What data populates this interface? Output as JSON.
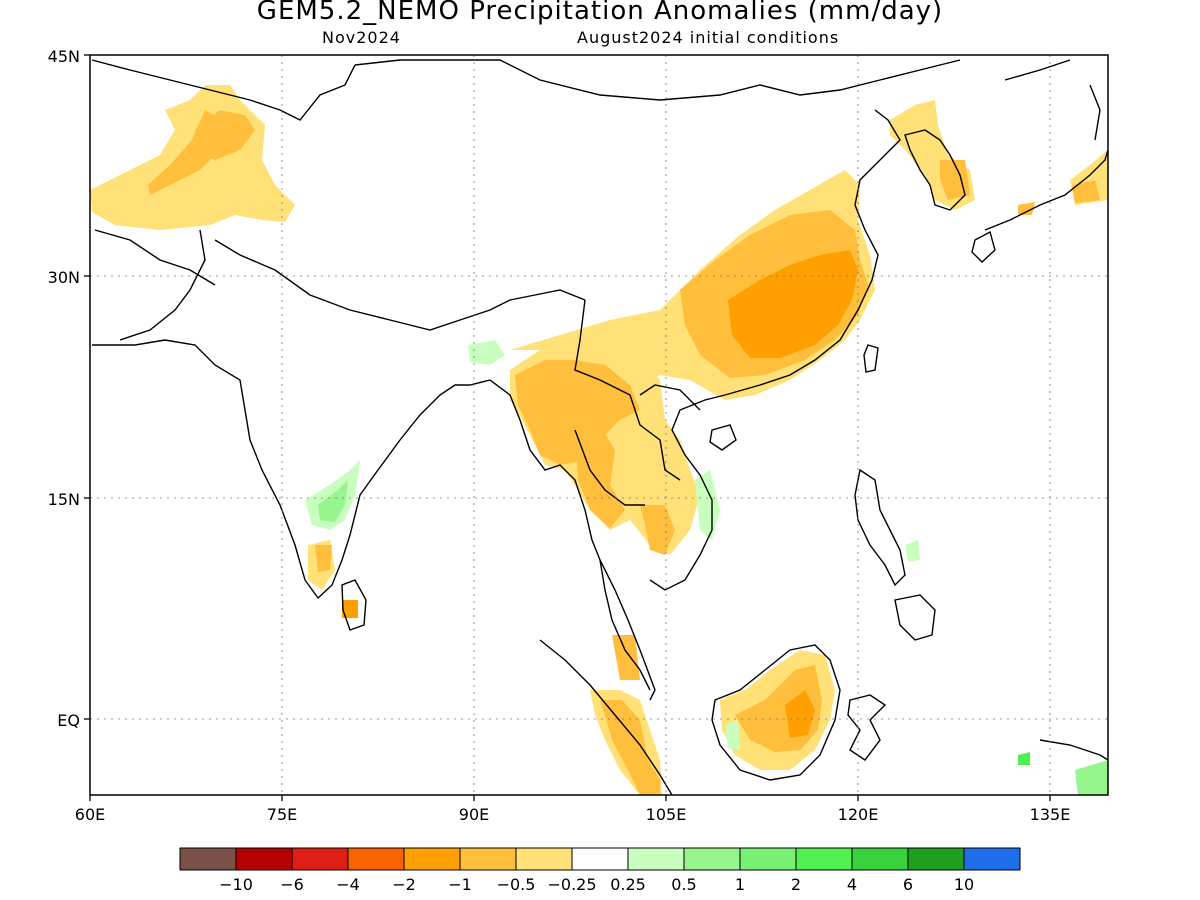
{
  "header": {
    "title": "GEM5.2_NEMO Precipitation Anomalies (mm/day)",
    "month": "Nov2024",
    "init": "August2024 initial conditions"
  },
  "map": {
    "lat_labels": [
      "45N",
      "30N",
      "15N",
      "EQ"
    ],
    "lon_labels": [
      "60E",
      "75E",
      "90E",
      "105E",
      "120E",
      "135E"
    ],
    "grid": true,
    "extent": {
      "lon_min": 60,
      "lon_max": 140,
      "lat_min": -5,
      "lat_max": 45
    }
  },
  "colorbar": {
    "colors": [
      "#7b5048",
      "#b40000",
      "#de1e14",
      "#fa6400",
      "#ffa000",
      "#ffbe3c",
      "#ffe178",
      "#ffffff",
      "#c8ffbe",
      "#96f58c",
      "#78f073",
      "#50f050",
      "#37d23c",
      "#1ea01e",
      "#1e6eeb"
    ],
    "labels": [
      "-10",
      "-6",
      "-4",
      "-2",
      "-1",
      "-0.5",
      "-0.25",
      "0.25",
      "0.5",
      "1",
      "2",
      "4",
      "6",
      "10"
    ]
  },
  "legend_colors": {
    "light": "#ffe178",
    "medium": "#ffbe3c",
    "strong": "#ffa000",
    "wet_light": "#c8ffbe",
    "wet": "#96f58c",
    "wet_strong": "#50f050"
  }
}
